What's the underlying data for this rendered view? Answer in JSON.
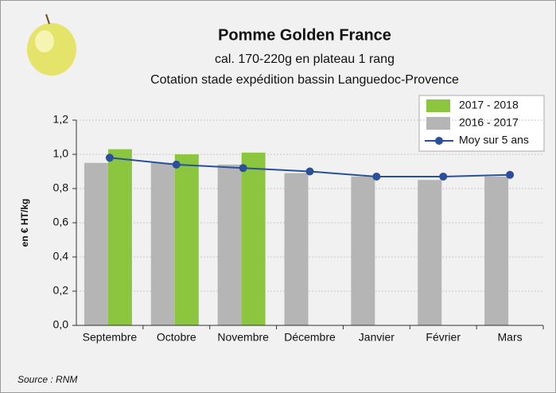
{
  "chart_data": {
    "type": "bar",
    "title": "Pomme Golden France",
    "subtitle": [
      "cal. 170-220g en plateau 1 rang",
      "Cotation stade expédition bassin Languedoc-Provence"
    ],
    "y_label": "en € HT/kg",
    "source": "Source : RNM",
    "categories": [
      "Septembre",
      "Octobre",
      "Novembre",
      "Décembre",
      "Janvier",
      "Février",
      "Mars"
    ],
    "series": [
      {
        "name": "2017 - 2018",
        "type": "bar",
        "color": "#8cc63f",
        "values": [
          1.03,
          1.0,
          1.01,
          null,
          null,
          null,
          null
        ]
      },
      {
        "name": "2016 - 2017",
        "type": "bar",
        "color": "#b5b5b5",
        "values": [
          0.95,
          0.95,
          0.94,
          0.89,
          0.87,
          0.85,
          0.87
        ]
      },
      {
        "name": "Moy sur 5 ans",
        "type": "line",
        "color": "#2a4f9c",
        "values": [
          0.98,
          0.94,
          0.92,
          0.9,
          0.87,
          0.87,
          0.88
        ]
      }
    ],
    "ylim": [
      0,
      1.2
    ],
    "yticks": [
      {
        "value": 0,
        "label": "0,0"
      },
      {
        "value": 0.2,
        "label": "0,2"
      },
      {
        "value": 0.4,
        "label": "0,4"
      },
      {
        "value": 0.6,
        "label": "0,6"
      },
      {
        "value": 0.8,
        "label": "0,8"
      },
      {
        "value": 1,
        "label": "1,0"
      },
      {
        "value": 1.2,
        "label": "1,2"
      }
    ],
    "grid": true,
    "legend": "top-right"
  }
}
